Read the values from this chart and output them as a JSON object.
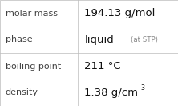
{
  "rows": [
    {
      "label": "molar mass",
      "value": "194.13 g/mol",
      "note": null,
      "superscript": null
    },
    {
      "label": "phase",
      "value": "liquid",
      "note": "(at STP)",
      "superscript": null
    },
    {
      "label": "boiling point",
      "value": "211 °C",
      "note": null,
      "superscript": null
    },
    {
      "label": "density",
      "value": "1.38 g/cm",
      "note": null,
      "superscript": "3"
    }
  ],
  "bg_color": "#ffffff",
  "border_color": "#bbbbbb",
  "label_color": "#404040",
  "value_color": "#111111",
  "note_color": "#888888",
  "label_fontsize": 8.0,
  "value_fontsize": 9.5,
  "note_fontsize": 6.2,
  "super_fontsize": 5.8,
  "divider_color": "#bbbbbb",
  "col_split": 0.435
}
